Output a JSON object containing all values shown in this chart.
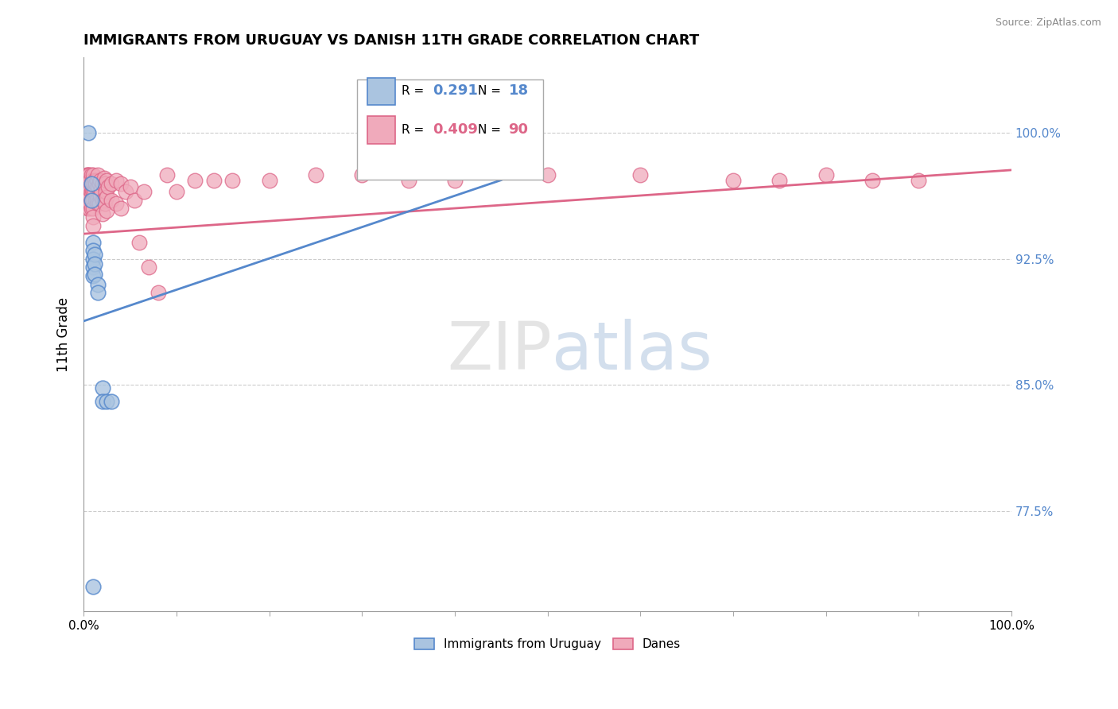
{
  "title": "IMMIGRANTS FROM URUGUAY VS DANISH 11TH GRADE CORRELATION CHART",
  "source_text": "Source: ZipAtlas.com",
  "ylabel": "11th Grade",
  "ytick_labels": [
    "77.5%",
    "85.0%",
    "92.5%",
    "100.0%"
  ],
  "ytick_values": [
    0.775,
    0.85,
    0.925,
    1.0
  ],
  "xlim": [
    0.0,
    1.0
  ],
  "ylim": [
    0.715,
    1.045
  ],
  "legend_entries": [
    {
      "label": "Immigrants from Uruguay",
      "R": "0.291",
      "N": "18"
    },
    {
      "label": "Danes",
      "R": "0.409",
      "N": "90"
    }
  ],
  "blue_scatter_x": [
    0.005,
    0.008,
    0.008,
    0.01,
    0.01,
    0.01,
    0.01,
    0.01,
    0.012,
    0.012,
    0.012,
    0.015,
    0.015,
    0.02,
    0.02,
    0.025,
    0.03,
    0.01
  ],
  "blue_scatter_y": [
    1.0,
    0.97,
    0.96,
    0.935,
    0.93,
    0.925,
    0.92,
    0.915,
    0.928,
    0.922,
    0.916,
    0.91,
    0.905,
    0.848,
    0.84,
    0.84,
    0.84,
    0.73
  ],
  "pink_scatter_x": [
    0.003,
    0.003,
    0.003,
    0.004,
    0.004,
    0.004,
    0.004,
    0.004,
    0.005,
    0.005,
    0.005,
    0.005,
    0.006,
    0.006,
    0.006,
    0.006,
    0.007,
    0.007,
    0.007,
    0.008,
    0.008,
    0.008,
    0.008,
    0.008,
    0.009,
    0.009,
    0.009,
    0.01,
    0.01,
    0.01,
    0.01,
    0.01,
    0.01,
    0.01,
    0.012,
    0.012,
    0.013,
    0.013,
    0.014,
    0.014,
    0.015,
    0.015,
    0.015,
    0.017,
    0.017,
    0.018,
    0.018,
    0.019,
    0.02,
    0.02,
    0.02,
    0.022,
    0.022,
    0.023,
    0.023,
    0.024,
    0.025,
    0.025,
    0.025,
    0.026,
    0.03,
    0.03,
    0.035,
    0.035,
    0.04,
    0.04,
    0.045,
    0.05,
    0.055,
    0.06,
    0.065,
    0.07,
    0.08,
    0.09,
    0.1,
    0.12,
    0.14,
    0.16,
    0.2,
    0.25,
    0.3,
    0.35,
    0.4,
    0.5,
    0.6,
    0.7,
    0.75,
    0.8,
    0.85,
    0.9
  ],
  "pink_scatter_y": [
    0.975,
    0.97,
    0.965,
    0.975,
    0.97,
    0.965,
    0.96,
    0.955,
    0.975,
    0.968,
    0.963,
    0.958,
    0.975,
    0.968,
    0.963,
    0.955,
    0.972,
    0.966,
    0.958,
    0.975,
    0.97,
    0.965,
    0.96,
    0.955,
    0.972,
    0.966,
    0.96,
    0.975,
    0.97,
    0.965,
    0.96,
    0.955,
    0.95,
    0.945,
    0.972,
    0.965,
    0.97,
    0.96,
    0.972,
    0.96,
    0.975,
    0.968,
    0.958,
    0.97,
    0.958,
    0.972,
    0.963,
    0.966,
    0.97,
    0.96,
    0.952,
    0.973,
    0.96,
    0.97,
    0.958,
    0.965,
    0.972,
    0.962,
    0.954,
    0.968,
    0.97,
    0.96,
    0.972,
    0.958,
    0.97,
    0.955,
    0.965,
    0.968,
    0.96,
    0.935,
    0.965,
    0.92,
    0.905,
    0.975,
    0.965,
    0.972,
    0.972,
    0.972,
    0.972,
    0.975,
    0.975,
    0.972,
    0.972,
    0.975,
    0.975,
    0.972,
    0.972,
    0.975,
    0.972,
    0.972
  ],
  "blue_line_start_x": 0.0,
  "blue_line_start_y": 0.888,
  "blue_line_end_x": 0.45,
  "blue_line_end_y": 0.972,
  "pink_line_start_x": 0.0,
  "pink_line_start_y": 0.94,
  "pink_line_end_x": 1.0,
  "pink_line_end_y": 0.978,
  "blue_color": "#5588cc",
  "pink_color": "#dd6688",
  "blue_fill": "#aac4e0",
  "pink_fill": "#f0aabb",
  "watermark_zip_color": "#c5c5c5",
  "watermark_atlas_color": "#9fb8d8"
}
